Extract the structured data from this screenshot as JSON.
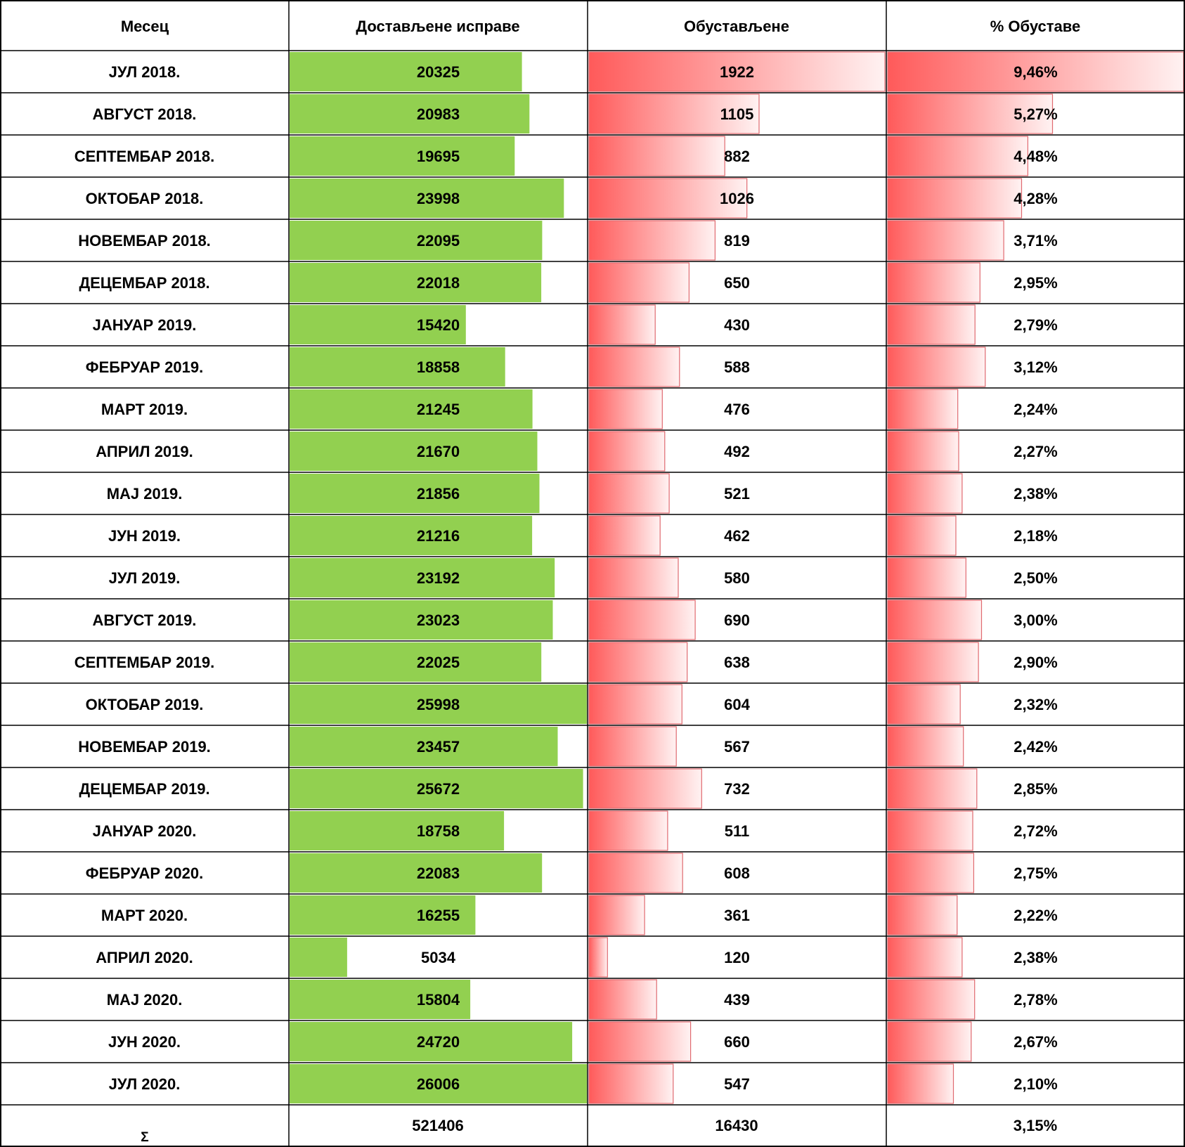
{
  "colors": {
    "data_bar_green": "#92D050",
    "gradient_red_strong": "#FF5A5A",
    "gradient_red_light": "#FFF2F2",
    "bar_border_red": "#E06A70",
    "grid": "#000000",
    "background": "#FFFFFF"
  },
  "chart_data": {
    "type": "table",
    "columns": [
      "Месец",
      "Достављене исправе",
      "Обустављене",
      "% Обуставе"
    ],
    "rows": [
      {
        "month": "ЈУЛ 2018.",
        "delivered": 20325,
        "suspended": 1922,
        "percent": "9,46%",
        "percent_value": 9.46
      },
      {
        "month": "АВГУСТ 2018.",
        "delivered": 20983,
        "suspended": 1105,
        "percent": "5,27%",
        "percent_value": 5.27
      },
      {
        "month": "СЕПТЕМБАР 2018.",
        "delivered": 19695,
        "suspended": 882,
        "percent": "4,48%",
        "percent_value": 4.48
      },
      {
        "month": "ОКТОБАР 2018.",
        "delivered": 23998,
        "suspended": 1026,
        "percent": "4,28%",
        "percent_value": 4.28
      },
      {
        "month": "НОВЕМБАР 2018.",
        "delivered": 22095,
        "suspended": 819,
        "percent": "3,71%",
        "percent_value": 3.71
      },
      {
        "month": "ДЕЦЕМБАР 2018.",
        "delivered": 22018,
        "suspended": 650,
        "percent": "2,95%",
        "percent_value": 2.95
      },
      {
        "month": "ЈАНУАР 2019.",
        "delivered": 15420,
        "suspended": 430,
        "percent": "2,79%",
        "percent_value": 2.79
      },
      {
        "month": "ФЕБРУАР 2019.",
        "delivered": 18858,
        "suspended": 588,
        "percent": "3,12%",
        "percent_value": 3.12
      },
      {
        "month": "МАРТ 2019.",
        "delivered": 21245,
        "suspended": 476,
        "percent": "2,24%",
        "percent_value": 2.24
      },
      {
        "month": "АПРИЛ 2019.",
        "delivered": 21670,
        "suspended": 492,
        "percent": "2,27%",
        "percent_value": 2.27
      },
      {
        "month": "МАЈ 2019.",
        "delivered": 21856,
        "suspended": 521,
        "percent": "2,38%",
        "percent_value": 2.38
      },
      {
        "month": "ЈУН 2019.",
        "delivered": 21216,
        "suspended": 462,
        "percent": "2,18%",
        "percent_value": 2.18
      },
      {
        "month": "ЈУЛ 2019.",
        "delivered": 23192,
        "suspended": 580,
        "percent": "2,50%",
        "percent_value": 2.5
      },
      {
        "month": "АВГУСТ 2019.",
        "delivered": 23023,
        "suspended": 690,
        "percent": "3,00%",
        "percent_value": 3.0
      },
      {
        "month": "СЕПТЕМБАР 2019.",
        "delivered": 22025,
        "suspended": 638,
        "percent": "2,90%",
        "percent_value": 2.9
      },
      {
        "month": "ОКТОБАР 2019.",
        "delivered": 25998,
        "suspended": 604,
        "percent": "2,32%",
        "percent_value": 2.32
      },
      {
        "month": "НОВЕМБАР 2019.",
        "delivered": 23457,
        "suspended": 567,
        "percent": "2,42%",
        "percent_value": 2.42
      },
      {
        "month": "ДЕЦЕМБАР 2019.",
        "delivered": 25672,
        "suspended": 732,
        "percent": "2,85%",
        "percent_value": 2.85
      },
      {
        "month": "ЈАНУАР 2020.",
        "delivered": 18758,
        "suspended": 511,
        "percent": "2,72%",
        "percent_value": 2.72
      },
      {
        "month": "ФЕБРУАР 2020.",
        "delivered": 22083,
        "suspended": 608,
        "percent": "2,75%",
        "percent_value": 2.75
      },
      {
        "month": "МАРТ 2020.",
        "delivered": 16255,
        "suspended": 361,
        "percent": "2,22%",
        "percent_value": 2.22
      },
      {
        "month": "АПРИЛ 2020.",
        "delivered": 5034,
        "suspended": 120,
        "percent": "2,38%",
        "percent_value": 2.38
      },
      {
        "month": "МАЈ 2020.",
        "delivered": 15804,
        "suspended": 439,
        "percent": "2,78%",
        "percent_value": 2.78
      },
      {
        "month": "ЈУН 2020.",
        "delivered": 24720,
        "suspended": 660,
        "percent": "2,67%",
        "percent_value": 2.67
      },
      {
        "month": "ЈУЛ 2020.",
        "delivered": 26006,
        "suspended": 547,
        "percent": "2,10%",
        "percent_value": 2.1
      }
    ],
    "total": {
      "label": "Σ",
      "delivered": 521406,
      "suspended": 16430,
      "percent": "3,15%"
    }
  }
}
